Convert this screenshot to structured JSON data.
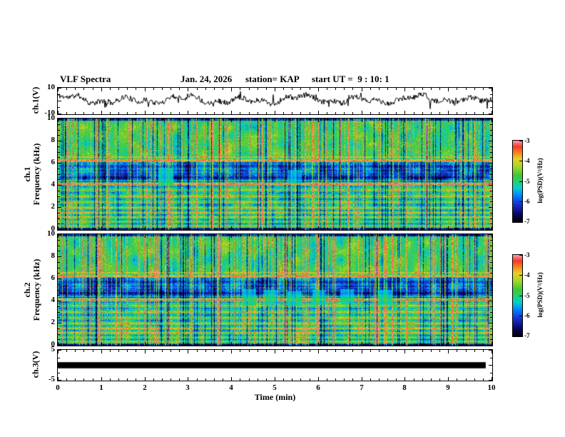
{
  "header": {
    "title": "VLF Spectra",
    "date": "Jan. 24, 2026",
    "station": "station= KAP",
    "start_ut": "start UT =  9 : 10: 1"
  },
  "xaxis": {
    "label": "Time (min)",
    "min": 0,
    "max": 10,
    "major": 1,
    "minor": 0.2,
    "tick_labels": [
      {
        "v": 0,
        "t": "0"
      },
      {
        "v": 1,
        "t": "1"
      },
      {
        "v": 2,
        "t": "2"
      },
      {
        "v": 3,
        "t": "3"
      },
      {
        "v": 4,
        "t": "4"
      },
      {
        "v": 5,
        "t": "5"
      },
      {
        "v": 6,
        "t": "6"
      },
      {
        "v": 7,
        "t": "7"
      },
      {
        "v": 8,
        "t": "8"
      },
      {
        "v": 9,
        "t": "9"
      },
      {
        "v": 10,
        "t": "10"
      }
    ]
  },
  "panels": [
    {
      "id": "p1",
      "ylabel": "ch.1(V)",
      "ymin": -10,
      "ymax": 10,
      "ymajor": [
        10,
        0,
        -10
      ],
      "yminor_step": 5,
      "ylabels": [
        {
          "v": 10,
          "t": "10"
        },
        {
          "v": -10,
          "t": "-10"
        }
      ]
    },
    {
      "id": "p2",
      "ylabel": "ch.1\nFrequency (kHz)",
      "ymin": 0,
      "ymax": 10,
      "ymajor": [
        0,
        2,
        4,
        6,
        8,
        10
      ],
      "yminor_step": 0.5,
      "ylabels": [
        {
          "v": 10,
          "t": "10"
        },
        {
          "v": 8,
          "t": "8"
        },
        {
          "v": 6,
          "t": "6"
        },
        {
          "v": 4,
          "t": "4"
        },
        {
          "v": 2,
          "t": "2"
        },
        {
          "v": 0,
          "t": "0"
        }
      ]
    },
    {
      "id": "p3",
      "ylabel": "ch.2\nFrequency (kHz)",
      "ymin": 0,
      "ymax": 10,
      "ymajor": [
        0,
        2,
        4,
        6,
        8,
        10
      ],
      "yminor_step": 0.5,
      "ylabels": [
        {
          "v": 10,
          "t": "10"
        },
        {
          "v": 8,
          "t": "8"
        },
        {
          "v": 6,
          "t": "6"
        },
        {
          "v": 4,
          "t": "4"
        },
        {
          "v": 2,
          "t": "2"
        },
        {
          "v": 0,
          "t": "0"
        }
      ]
    },
    {
      "id": "p4",
      "ylabel": "ch.3(V)",
      "ymin": -5,
      "ymax": 5,
      "ymajor": [
        5,
        0,
        -5
      ],
      "yminor_step": 2.5,
      "ylabels": [
        {
          "v": 5,
          "t": "5"
        },
        {
          "v": -5,
          "t": "-5"
        }
      ]
    }
  ],
  "colorbar": {
    "label": "log(PSD)(V²/Hz)",
    "ticks": [
      "-3",
      "-4",
      "-5",
      "-6",
      "-7"
    ]
  },
  "render": {
    "colormap": [
      [
        0.0,
        0,
        0,
        0
      ],
      [
        0.1,
        8,
        8,
        96
      ],
      [
        0.22,
        24,
        48,
        208
      ],
      [
        0.33,
        0,
        128,
        255
      ],
      [
        0.42,
        0,
        208,
        208
      ],
      [
        0.5,
        40,
        208,
        112
      ],
      [
        0.58,
        64,
        200,
        56
      ],
      [
        0.68,
        160,
        216,
        40
      ],
      [
        0.78,
        232,
        208,
        40
      ],
      [
        0.86,
        248,
        128,
        32
      ],
      [
        0.93,
        248,
        56,
        40
      ],
      [
        1.0,
        255,
        150,
        170
      ]
    ]
  },
  "chart_data": [
    {
      "type": "line",
      "name": "ch.1 voltage vs time",
      "x_range": [
        0,
        10
      ],
      "y_range": [
        -10,
        10
      ],
      "x_unit": "min",
      "y_unit": "V",
      "seed": 11,
      "offset": 1.0,
      "noise_amp": 2.1,
      "carrier": [
        {
          "amp": 2.0,
          "freq": 4.7,
          "phase": 0.4
        },
        {
          "amp": 1.3,
          "freq": 11.9,
          "phase": 2.0
        },
        {
          "amp": 1.1,
          "freq": 2.3,
          "phase": 1.2
        }
      ],
      "description": "continuous broadband noisy voltage waveform, mostly 0 to +6 V with spikes to about ±9 V"
    },
    {
      "type": "heatmap",
      "name": "ch.1 VLF spectrogram",
      "x_range": [
        0,
        10
      ],
      "y_range": [
        0,
        10
      ],
      "x_unit": "min",
      "y_unit": "kHz",
      "z_label": "log(PSD)(V²/Hz)",
      "z_range": [
        -7,
        -3
      ],
      "seed": 7,
      "base_levels": [
        {
          "range": [
            6.15,
            10.01
          ],
          "v": 0.54
        },
        {
          "range": [
            5.15,
            6.15
          ],
          "v": 0.33
        },
        {
          "range": [
            4.3,
            5.15
          ],
          "v": 0.27
        },
        {
          "range": [
            2.3,
            4.3
          ],
          "v": 0.5
        },
        {
          "range": [
            0,
            2.3
          ],
          "v": 0.52
        }
      ],
      "bands": [
        {
          "f": 9.93,
          "w": 0.12,
          "dv": -0.38
        },
        {
          "f": 6.55,
          "w": 0.07,
          "dv": 0.22
        },
        {
          "f": 6.3,
          "w": 0.09,
          "dv": 0.34
        },
        {
          "f": 5.75,
          "w": 0.12,
          "dv": -0.12
        },
        {
          "f": 5.35,
          "w": 0.08,
          "dv": -0.08
        },
        {
          "f": 4.75,
          "w": 0.12,
          "dv": -0.12
        },
        {
          "f": 4.45,
          "w": 0.07,
          "dv": 0.2
        },
        {
          "f": 4.15,
          "w": 0.09,
          "dv": 0.45
        },
        {
          "f": 3.9,
          "w": 0.05,
          "dv": -0.15
        },
        {
          "f": 3.62,
          "w": 0.05,
          "dv": 0.22
        },
        {
          "f": 3.35,
          "w": 0.05,
          "dv": -0.14
        },
        {
          "f": 3.05,
          "w": 0.05,
          "dv": 0.24
        },
        {
          "f": 2.78,
          "w": 0.05,
          "dv": -0.16
        },
        {
          "f": 2.52,
          "w": 0.05,
          "dv": 0.2
        },
        {
          "f": 2.27,
          "w": 0.05,
          "dv": -0.14
        },
        {
          "f": 2.02,
          "w": 0.05,
          "dv": 0.26
        },
        {
          "f": 1.8,
          "w": 0.05,
          "dv": -0.18
        },
        {
          "f": 1.58,
          "w": 0.05,
          "dv": 0.22
        },
        {
          "f": 1.37,
          "w": 0.05,
          "dv": -0.16
        },
        {
          "f": 1.17,
          "w": 0.05,
          "dv": 0.24
        },
        {
          "f": 0.97,
          "w": 0.05,
          "dv": -0.18
        },
        {
          "f": 0.78,
          "w": 0.05,
          "dv": 0.22
        },
        {
          "f": 0.58,
          "w": 0.05,
          "dv": -0.2
        },
        {
          "f": 0.38,
          "w": 0.05,
          "dv": 0.18
        },
        {
          "f": 0.18,
          "w": 0.06,
          "dv": -0.28
        },
        {
          "f": 0.05,
          "w": 0.08,
          "dv": -0.45
        }
      ],
      "blobs": [
        {
          "x": [
            2.3,
            2.65
          ],
          "f": [
            4.0,
            5.6
          ]
        },
        {
          "x": [
            5.3,
            5.6
          ],
          "f": [
            4.2,
            5.4
          ]
        }
      ],
      "description": "green broadband background, dark blue absorption band 4.3-6.1 kHz, strong red line at 4.15 kHz, orange line at 6.3 kHz, many horizontal striations below 4 kHz, dense vertical sferic streaks"
    },
    {
      "type": "heatmap",
      "name": "ch.2 VLF spectrogram",
      "x_range": [
        0,
        10
      ],
      "y_range": [
        0,
        10
      ],
      "x_unit": "min",
      "y_unit": "kHz",
      "z_label": "log(PSD)(V²/Hz)",
      "z_range": [
        -7,
        -3
      ],
      "seed": 23,
      "base_levels": [
        {
          "range": [
            6.15,
            10.01
          ],
          "v": 0.54
        },
        {
          "range": [
            5.15,
            6.15
          ],
          "v": 0.33
        },
        {
          "range": [
            4.3,
            5.15
          ],
          "v": 0.27
        },
        {
          "range": [
            2.3,
            4.3
          ],
          "v": 0.5
        },
        {
          "range": [
            0,
            2.3
          ],
          "v": 0.52
        }
      ],
      "bands": [
        {
          "f": 9.93,
          "w": 0.12,
          "dv": -0.38
        },
        {
          "f": 6.55,
          "w": 0.07,
          "dv": 0.22
        },
        {
          "f": 6.3,
          "w": 0.09,
          "dv": 0.34
        },
        {
          "f": 5.75,
          "w": 0.12,
          "dv": -0.12
        },
        {
          "f": 5.35,
          "w": 0.08,
          "dv": -0.08
        },
        {
          "f": 4.75,
          "w": 0.12,
          "dv": -0.12
        },
        {
          "f": 4.45,
          "w": 0.07,
          "dv": 0.2
        },
        {
          "f": 4.15,
          "w": 0.09,
          "dv": 0.45
        },
        {
          "f": 3.9,
          "w": 0.05,
          "dv": -0.15
        },
        {
          "f": 3.62,
          "w": 0.05,
          "dv": 0.22
        },
        {
          "f": 3.35,
          "w": 0.05,
          "dv": -0.14
        },
        {
          "f": 3.05,
          "w": 0.05,
          "dv": 0.24
        },
        {
          "f": 2.78,
          "w": 0.05,
          "dv": -0.16
        },
        {
          "f": 2.52,
          "w": 0.05,
          "dv": 0.2
        },
        {
          "f": 2.27,
          "w": 0.05,
          "dv": -0.14
        },
        {
          "f": 2.02,
          "w": 0.05,
          "dv": 0.26
        },
        {
          "f": 1.8,
          "w": 0.05,
          "dv": -0.18
        },
        {
          "f": 1.58,
          "w": 0.05,
          "dv": 0.22
        },
        {
          "f": 1.37,
          "w": 0.05,
          "dv": -0.16
        },
        {
          "f": 1.17,
          "w": 0.05,
          "dv": 0.24
        },
        {
          "f": 0.97,
          "w": 0.05,
          "dv": -0.18
        },
        {
          "f": 0.78,
          "w": 0.05,
          "dv": 0.22
        },
        {
          "f": 0.58,
          "w": 0.05,
          "dv": -0.2
        },
        {
          "f": 0.38,
          "w": 0.05,
          "dv": 0.18
        },
        {
          "f": 0.18,
          "w": 0.06,
          "dv": -0.28
        },
        {
          "f": 0.05,
          "w": 0.08,
          "dv": -0.45
        }
      ],
      "blobs": [
        {
          "x": [
            4.25,
            4.55
          ],
          "f": [
            3.6,
            5.1
          ]
        },
        {
          "x": [
            4.75,
            5.05
          ],
          "f": [
            3.7,
            5.0
          ]
        },
        {
          "x": [
            5.25,
            5.6
          ],
          "f": [
            3.6,
            4.9
          ]
        },
        {
          "x": [
            5.85,
            6.15
          ],
          "f": [
            3.7,
            5.0
          ]
        },
        {
          "x": [
            6.5,
            6.8
          ],
          "f": [
            3.8,
            5.1
          ]
        },
        {
          "x": [
            7.35,
            7.7
          ],
          "f": [
            3.7,
            5.0
          ]
        }
      ],
      "description": "same banded structure as ch.1 with pale cyan patches near 4-5 kHz between 4.2 and 7.7 min"
    },
    {
      "type": "bar",
      "name": "ch.3 voltage vs time",
      "x_range": [
        0,
        10
      ],
      "y_range": [
        -5,
        5
      ],
      "x_unit": "min",
      "y_unit": "V",
      "bar": {
        "x": [
          0,
          9.85
        ],
        "y": [
          -1.0,
          1.0
        ],
        "color": "#000000"
      },
      "description": "flat clipped trace at 0 V rendered as a thick solid black bar across the panel"
    }
  ]
}
